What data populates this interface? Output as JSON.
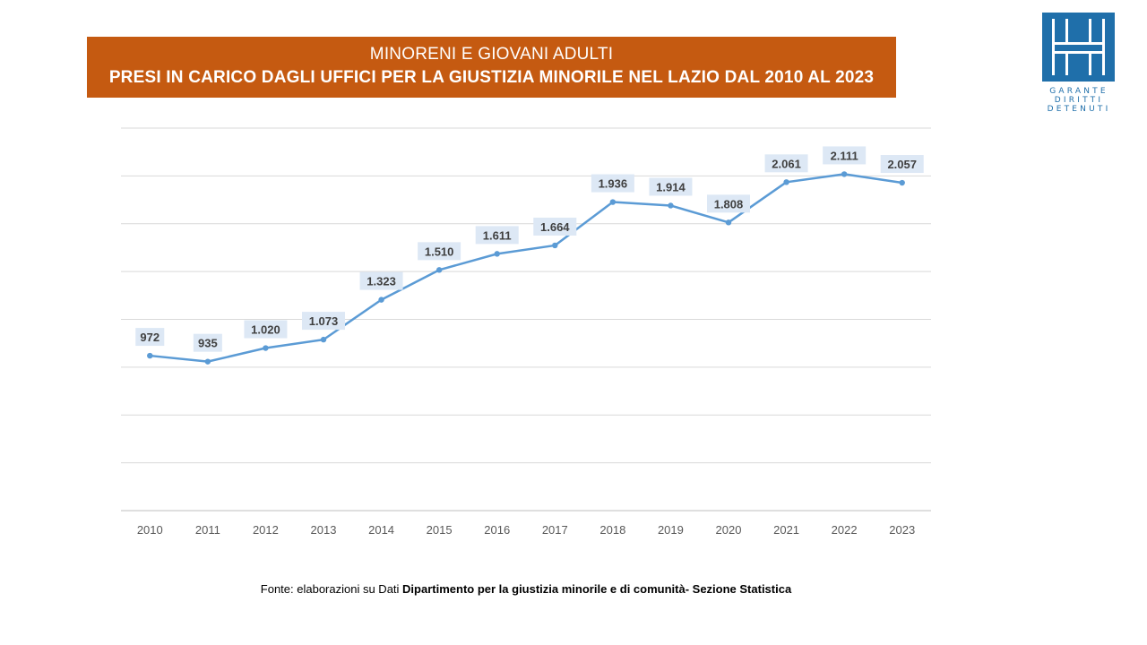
{
  "title": {
    "line1": "MINORENI E GIOVANI ADULTI",
    "line2": "PRESI IN CARICO DAGLI UFFICI PER LA GIUSTIZIA  MINORILE NEL LAZIO DAL 2010 AL 2023"
  },
  "logo": {
    "lines": [
      "GARANTE",
      "DIRITTI",
      "DETENUTI"
    ],
    "color": "#1f6faa"
  },
  "source": {
    "prefix": "Fonte:  elaborazioni su Dati ",
    "bold": "Dipartimento per la giustizia minorile e di comunità- Sezione Statistica"
  },
  "chart_data": {
    "type": "line",
    "title": "MINORENI E GIOVANI ADULTI PRESI IN CARICO DAGLI UFFICI PER LA GIUSTIZIA MINORILE NEL LAZIO DAL 2010 AL 2023",
    "categories": [
      "2010",
      "2011",
      "2012",
      "2013",
      "2014",
      "2015",
      "2016",
      "2017",
      "2018",
      "2019",
      "2020",
      "2021",
      "2022",
      "2023"
    ],
    "series": [
      {
        "values": [
          972,
          935,
          1020,
          1073,
          1323,
          1510,
          1611,
          1664,
          1936,
          1914,
          1808,
          2061,
          2111,
          2057
        ],
        "labels": [
          "972",
          "935",
          "1.020",
          "1.073",
          "1.323",
          "1.510",
          "1.611",
          "1.664",
          "1.936",
          "1.914",
          "1.808",
          "2.061",
          "2.111",
          "2.057"
        ],
        "color": "#5b9bd5"
      }
    ],
    "ylim": [
      0,
      2400
    ],
    "grid": true,
    "y_tick_labels_shown": false,
    "legend": "none",
    "label_background": "#dde8f5"
  }
}
